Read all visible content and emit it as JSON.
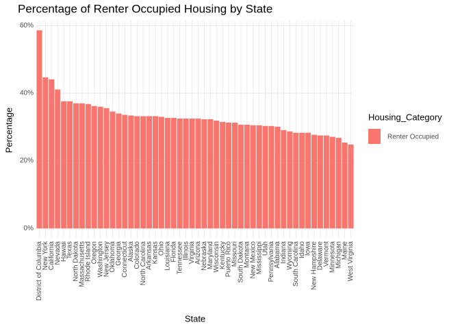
{
  "chart_data": {
    "type": "bar",
    "title": "Percentage of Renter Occupied Housing by State",
    "x_label": "State",
    "y_label": "Percentage",
    "legend_title": "Housing_Category",
    "categories": [
      "District of Columbia",
      "New York",
      "California",
      "Nevada",
      "Hawaii",
      "Texas",
      "North Dakota",
      "Massachusetts",
      "Rhode Island",
      "Oregon",
      "Washington",
      "New Jersey",
      "Oklahoma",
      "Georgia",
      "Connecticut",
      "Alaska",
      "Colorado",
      "North Carolina",
      "Arkansas",
      "Kansas",
      "Ohio",
      "Louisiana",
      "Florida",
      "Tennessee",
      "Illinois",
      "Virginia",
      "Arizona",
      "Nebraska",
      "Maryland",
      "Wisconsin",
      "Kentucky",
      "Puerto Rico",
      "Missouri",
      "South Dakota",
      "Montana",
      "New Mexico",
      "Mississippi",
      "Utah",
      "Pennsylvania",
      "Alabama",
      "Indiana",
      "Wyoming",
      "South Carolina",
      "Idaho",
      "Iowa",
      "New Hampshire",
      "Delaware",
      "Vermont",
      "Minnesota",
      "Michigan",
      "Maine",
      "West Virginia"
    ],
    "series": [
      {
        "name": "Renter Occupied",
        "color": "#f8766d",
        "values": [
          58.6,
          44.7,
          44.1,
          41.1,
          37.6,
          37.6,
          37.0,
          37.0,
          36.8,
          36.2,
          36.0,
          35.6,
          34.6,
          34.0,
          33.6,
          33.4,
          33.2,
          33.2,
          33.2,
          33.2,
          33.0,
          32.7,
          32.7,
          32.5,
          32.5,
          32.5,
          32.5,
          32.3,
          32.3,
          31.9,
          31.5,
          31.3,
          31.3,
          30.7,
          30.7,
          30.5,
          30.5,
          30.3,
          30.3,
          30.1,
          29.1,
          28.7,
          28.3,
          28.3,
          28.3,
          27.7,
          27.5,
          27.5,
          27.1,
          26.8,
          25.4,
          24.8
        ]
      }
    ],
    "ylim": [
      -3,
      61.5
    ],
    "yticks": [
      {
        "value": 0,
        "label": "0%"
      },
      {
        "value": 20,
        "label": "20%"
      },
      {
        "value": 40,
        "label": "40%"
      },
      {
        "value": 60,
        "label": "60%"
      }
    ],
    "grid": true,
    "legend": "right"
  }
}
